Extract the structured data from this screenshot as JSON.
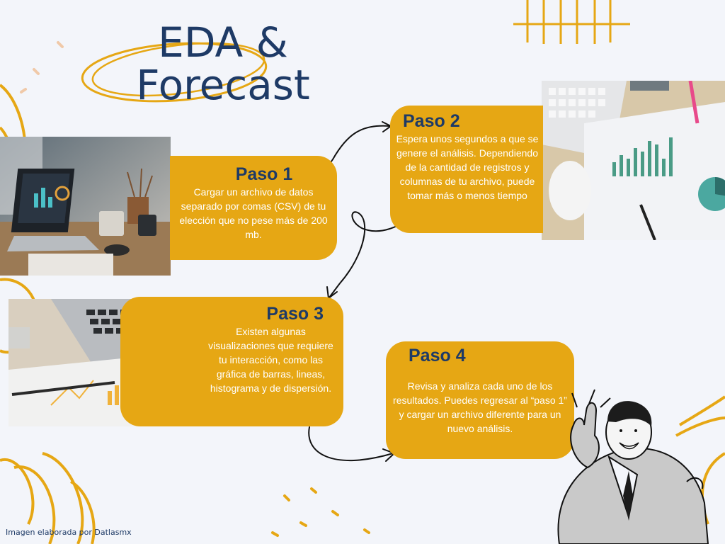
{
  "title": {
    "line1": "EDA &",
    "line2": "Forecast"
  },
  "steps": [
    {
      "label": "Paso 1",
      "text": "Cargar un archivo de datos separado por comas (CSV) de tu elección que no pese más de 200 mb."
    },
    {
      "label": "Paso 2",
      "text": "Espera unos segundos a que se genere el análisis. Dependiendo de la cantidad de registros y columnas de tu archivo, puede tomar más o menos tiempo"
    },
    {
      "label": "Paso 3",
      "text": "Existen algunas visualizaciones que requiere tu interacción, como las gráfica de barras, lineas, histograma y de dispersión."
    },
    {
      "label": "Paso 4",
      "text": "Revisa y analiza cada uno de los resultados. Puedes regresar al “paso 1” y cargar un archivo diferente para un nuevo análisis."
    }
  ],
  "footer": "Imagen elaborada por Datlasmx",
  "colors": {
    "accent": "#e6a714",
    "title": "#1e3a66",
    "background": "#f3f5fa",
    "line": "#111111"
  }
}
